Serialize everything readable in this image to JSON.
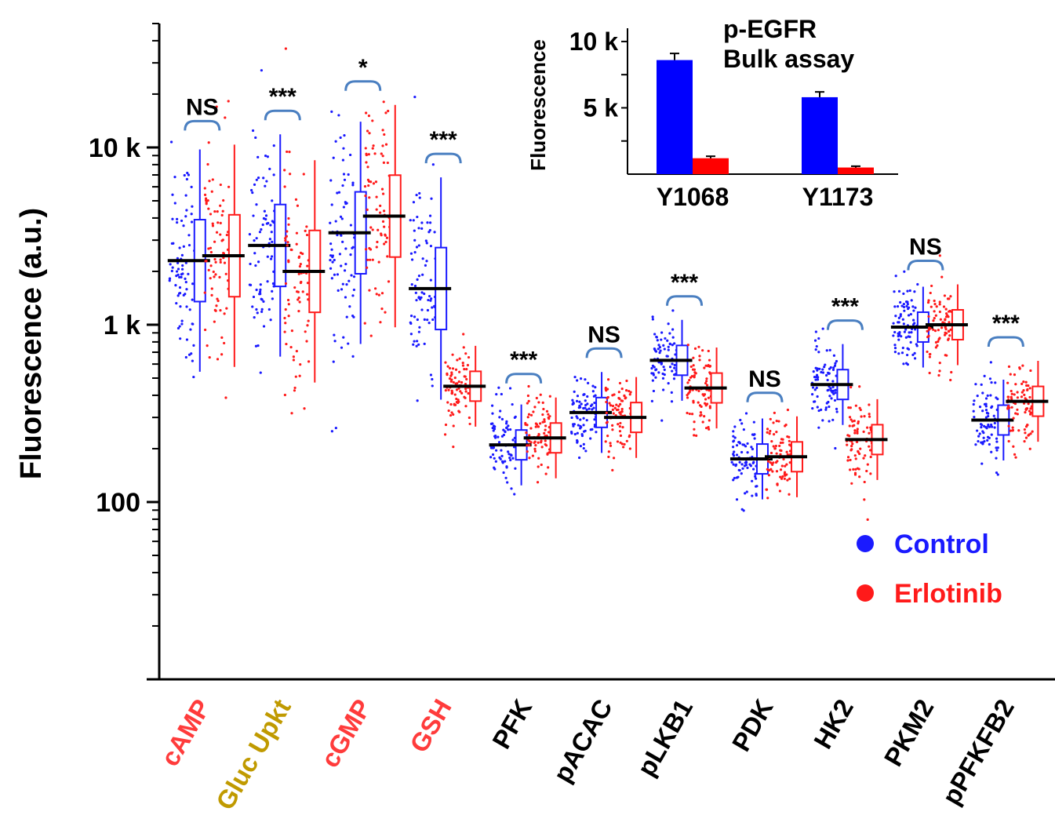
{
  "chart_data": [
    {
      "type": "scatter",
      "ylabel": "Fluorescence (a.u.)",
      "yscale": "log",
      "ylim": [
        10,
        50000
      ],
      "yticks": [
        {
          "value": 100,
          "label": "100"
        },
        {
          "value": 1000,
          "label": "1 k"
        },
        {
          "value": 10000,
          "label": "10 k"
        }
      ],
      "categories": [
        {
          "label": "cAMP",
          "color": "#ff3b3b",
          "significance": "NS",
          "control_median": 2300,
          "erlotinib_median": 2450
        },
        {
          "label": "Gluc Upkt",
          "color": "#c09a00",
          "significance": "***",
          "control_median": 2800,
          "erlotinib_median": 2000
        },
        {
          "label": "cGMP",
          "color": "#ff3b3b",
          "significance": "*",
          "control_median": 3300,
          "erlotinib_median": 4100
        },
        {
          "label": "GSH",
          "color": "#ff3b3b",
          "significance": "***",
          "control_median": 1600,
          "erlotinib_median": 450
        },
        {
          "label": "PFK",
          "color": "#000000",
          "significance": "***",
          "control_median": 210,
          "erlotinib_median": 230
        },
        {
          "label": "pACAC",
          "color": "#000000",
          "significance": "NS",
          "control_median": 320,
          "erlotinib_median": 300
        },
        {
          "label": "pLKB1",
          "color": "#000000",
          "significance": "***",
          "control_median": 630,
          "erlotinib_median": 440
        },
        {
          "label": "PDK",
          "color": "#000000",
          "significance": "NS",
          "control_median": 175,
          "erlotinib_median": 180
        },
        {
          "label": "HK2",
          "color": "#000000",
          "significance": "***",
          "control_median": 460,
          "erlotinib_median": 225
        },
        {
          "label": "PKM2",
          "color": "#000000",
          "significance": "NS",
          "control_median": 970,
          "erlotinib_median": 1000
        },
        {
          "label": "pPFKFB2",
          "color": "#000000",
          "significance": "***",
          "control_median": 290,
          "erlotinib_median": 370
        }
      ],
      "series": [
        {
          "name": "Control",
          "color": "#1a1aff"
        },
        {
          "name": "Erlotinib",
          "color": "#ff1a1a"
        }
      ],
      "legend_position": "bottom-right"
    },
    {
      "type": "bar",
      "title": [
        "p-EGFR",
        "Bulk assay"
      ],
      "ylabel": "Fluorescence",
      "categories": [
        "Y1068",
        "Y1173"
      ],
      "ylim": [
        0,
        11000
      ],
      "yticks": [
        {
          "value": 5000,
          "label": "5 k"
        },
        {
          "value": 10000,
          "label": "10 k"
        }
      ],
      "series": [
        {
          "name": "Control",
          "color": "#0000ff",
          "values": [
            8600,
            5800
          ],
          "errors": [
            500,
            400
          ]
        },
        {
          "name": "Erlotinib",
          "color": "#ff0000",
          "values": [
            1200,
            500
          ],
          "errors": [
            150,
            100
          ]
        }
      ]
    }
  ]
}
